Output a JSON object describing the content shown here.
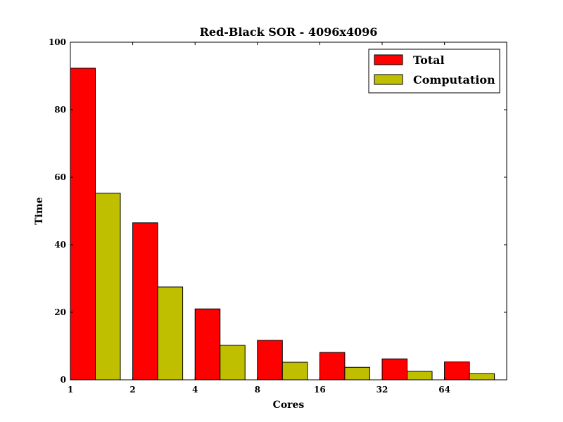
{
  "chart_data": {
    "type": "bar",
    "title": "Red-Black SOR - 4096x4096",
    "xlabel": "Cores",
    "ylabel": "Time",
    "categories": [
      "1",
      "2",
      "4",
      "8",
      "16",
      "32",
      "64"
    ],
    "ylim": [
      0,
      100
    ],
    "yticks": [
      0,
      20,
      40,
      60,
      80,
      100
    ],
    "grid": false,
    "legend_position": "top-right",
    "series": [
      {
        "name": "Total",
        "color": "#ff0000",
        "values": [
          92.3,
          46.5,
          21.0,
          11.7,
          8.1,
          6.2,
          5.3
        ]
      },
      {
        "name": "Computation",
        "color": "#bfbf00",
        "values": [
          55.3,
          27.5,
          10.2,
          5.2,
          3.7,
          2.5,
          1.8
        ]
      }
    ]
  }
}
